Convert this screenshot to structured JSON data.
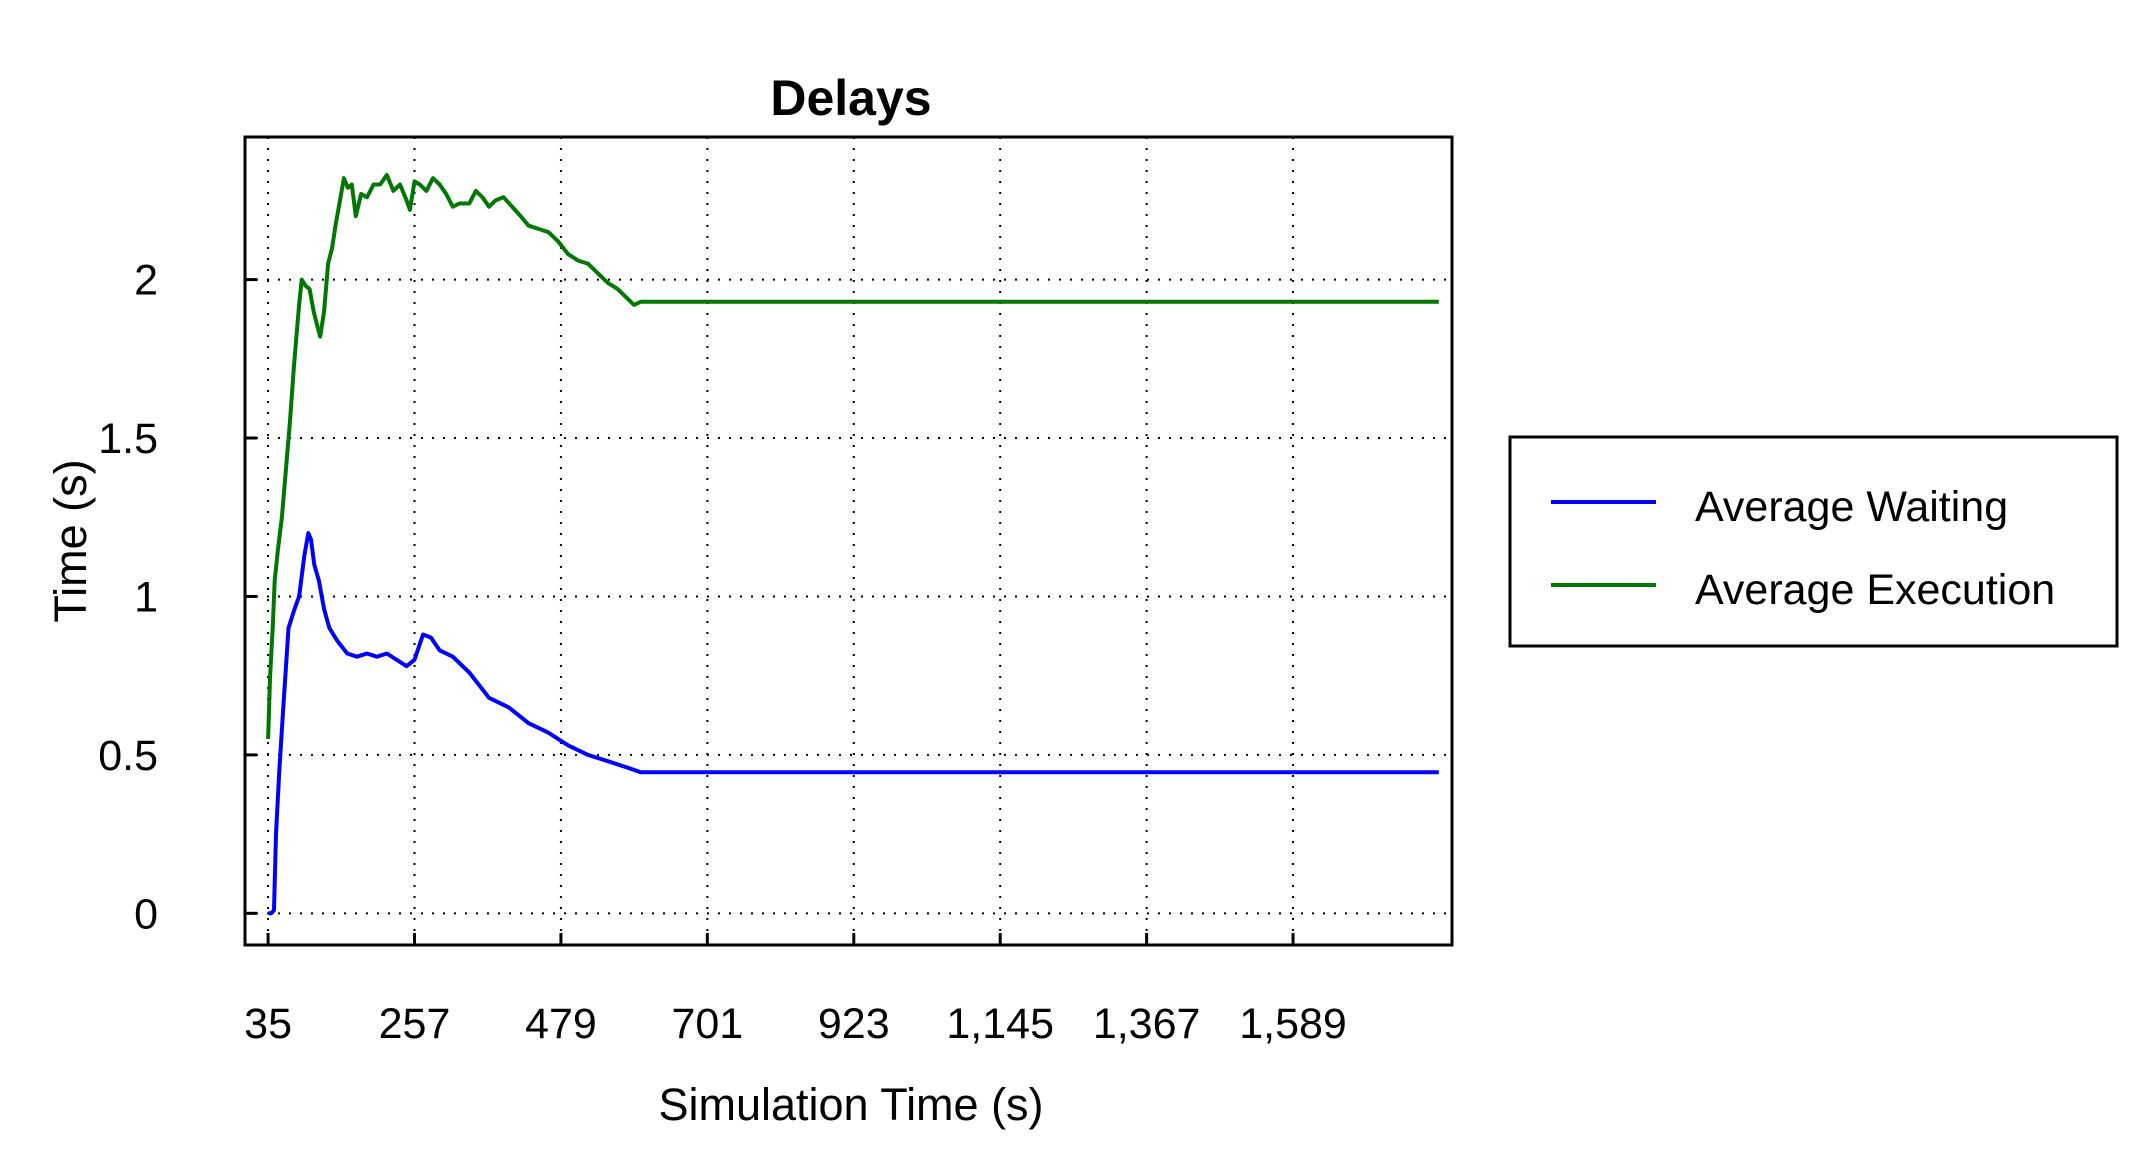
{
  "chart_data": {
    "type": "line",
    "title": "Delays",
    "xlabel": "Simulation Time (s)",
    "ylabel": "Time (s)",
    "xlim": [
      0,
      1830
    ],
    "ylim": [
      -0.1,
      2.45
    ],
    "grid": true,
    "legend_position": "right-outside",
    "x_ticks": [
      35,
      257,
      479,
      701,
      923,
      1145,
      1367,
      1589
    ],
    "x_tick_labels": [
      "35",
      "257",
      "479",
      "701",
      "923",
      "1,145",
      "1,367",
      "1,589"
    ],
    "y_ticks": [
      0,
      0.5,
      1,
      1.5,
      2
    ],
    "y_tick_labels": [
      "0",
      "0.5",
      "1",
      "1.5",
      "2"
    ],
    "series": [
      {
        "name": "Average Waiting",
        "color": "#0000ff",
        "points": [
          [
            35,
            0.0
          ],
          [
            40,
            0.0
          ],
          [
            44,
            0.01
          ],
          [
            47,
            0.25
          ],
          [
            52,
            0.45
          ],
          [
            58,
            0.65
          ],
          [
            66,
            0.9
          ],
          [
            75,
            0.96
          ],
          [
            82,
            1.0
          ],
          [
            90,
            1.13
          ],
          [
            96,
            1.2
          ],
          [
            100,
            1.18
          ],
          [
            105,
            1.1
          ],
          [
            112,
            1.05
          ],
          [
            120,
            0.96
          ],
          [
            128,
            0.9
          ],
          [
            140,
            0.86
          ],
          [
            155,
            0.82
          ],
          [
            170,
            0.81
          ],
          [
            185,
            0.82
          ],
          [
            200,
            0.81
          ],
          [
            215,
            0.82
          ],
          [
            230,
            0.8
          ],
          [
            245,
            0.78
          ],
          [
            257,
            0.8
          ],
          [
            265,
            0.85
          ],
          [
            270,
            0.88
          ],
          [
            282,
            0.87
          ],
          [
            295,
            0.83
          ],
          [
            315,
            0.81
          ],
          [
            340,
            0.76
          ],
          [
            370,
            0.68
          ],
          [
            400,
            0.65
          ],
          [
            430,
            0.6
          ],
          [
            460,
            0.57
          ],
          [
            490,
            0.53
          ],
          [
            520,
            0.5
          ],
          [
            550,
            0.48
          ],
          [
            580,
            0.46
          ],
          [
            600,
            0.445
          ],
          [
            701,
            0.445
          ],
          [
            923,
            0.445
          ],
          [
            1145,
            0.445
          ],
          [
            1367,
            0.445
          ],
          [
            1589,
            0.445
          ],
          [
            1810,
            0.445
          ]
        ]
      },
      {
        "name": "Average Execution",
        "color": "#007700",
        "points": [
          [
            35,
            0.55
          ],
          [
            38,
            0.75
          ],
          [
            42,
            0.9
          ],
          [
            45,
            1.05
          ],
          [
            50,
            1.15
          ],
          [
            56,
            1.25
          ],
          [
            62,
            1.4
          ],
          [
            68,
            1.55
          ],
          [
            74,
            1.72
          ],
          [
            78,
            1.82
          ],
          [
            82,
            1.92
          ],
          [
            86,
            2.0
          ],
          [
            92,
            1.98
          ],
          [
            98,
            1.97
          ],
          [
            104,
            1.9
          ],
          [
            110,
            1.85
          ],
          [
            114,
            1.82
          ],
          [
            120,
            1.9
          ],
          [
            126,
            2.05
          ],
          [
            132,
            2.1
          ],
          [
            138,
            2.18
          ],
          [
            144,
            2.25
          ],
          [
            150,
            2.32
          ],
          [
            156,
            2.29
          ],
          [
            162,
            2.3
          ],
          [
            168,
            2.2
          ],
          [
            176,
            2.27
          ],
          [
            185,
            2.26
          ],
          [
            195,
            2.3
          ],
          [
            205,
            2.3
          ],
          [
            215,
            2.33
          ],
          [
            225,
            2.28
          ],
          [
            235,
            2.3
          ],
          [
            245,
            2.25
          ],
          [
            250,
            2.22
          ],
          [
            257,
            2.31
          ],
          [
            265,
            2.3
          ],
          [
            275,
            2.28
          ],
          [
            285,
            2.32
          ],
          [
            295,
            2.3
          ],
          [
            305,
            2.27
          ],
          [
            315,
            2.23
          ],
          [
            325,
            2.24
          ],
          [
            340,
            2.24
          ],
          [
            350,
            2.28
          ],
          [
            360,
            2.26
          ],
          [
            370,
            2.23
          ],
          [
            380,
            2.25
          ],
          [
            392,
            2.26
          ],
          [
            405,
            2.23
          ],
          [
            418,
            2.2
          ],
          [
            430,
            2.17
          ],
          [
            445,
            2.16
          ],
          [
            460,
            2.15
          ],
          [
            475,
            2.12
          ],
          [
            490,
            2.08
          ],
          [
            505,
            2.06
          ],
          [
            520,
            2.05
          ],
          [
            535,
            2.02
          ],
          [
            550,
            1.99
          ],
          [
            565,
            1.97
          ],
          [
            580,
            1.94
          ],
          [
            590,
            1.92
          ],
          [
            600,
            1.93
          ],
          [
            701,
            1.93
          ],
          [
            923,
            1.93
          ],
          [
            1145,
            1.93
          ],
          [
            1367,
            1.93
          ],
          [
            1589,
            1.93
          ],
          [
            1810,
            1.93
          ]
        ]
      }
    ]
  }
}
